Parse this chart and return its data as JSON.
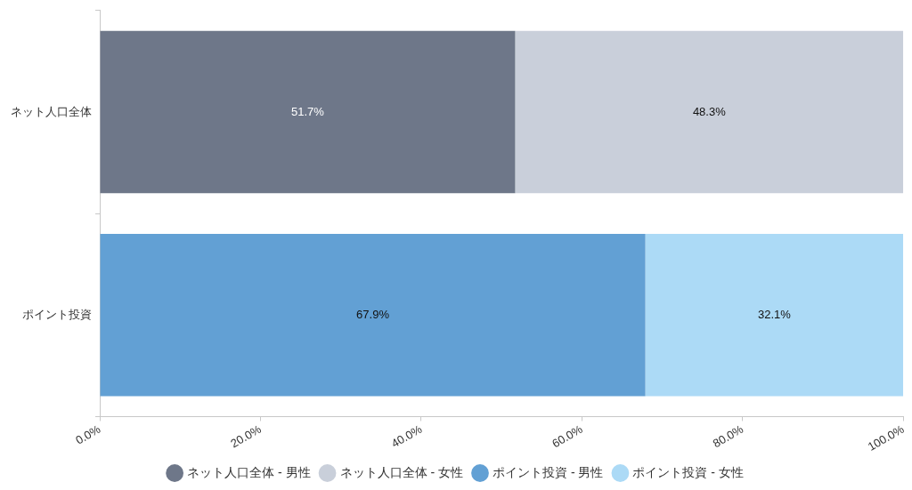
{
  "chart_data": {
    "type": "bar",
    "orientation": "horizontal",
    "stacked": true,
    "categories": [
      "ネット人口全体",
      "ポイント投資"
    ],
    "series": [
      {
        "name": "ネット人口全体 - 男性",
        "color": "#6e7789",
        "values": [
          51.7,
          null
        ],
        "value_labels": [
          "51.7%",
          null
        ]
      },
      {
        "name": "ネット人口全体 - 女性",
        "color": "#c9cfda",
        "values": [
          48.3,
          null
        ],
        "value_labels": [
          "48.3%",
          null
        ]
      },
      {
        "name": "ポイント投資 - 男性",
        "color": "#62a0d4",
        "values": [
          null,
          67.9
        ],
        "value_labels": [
          null,
          "67.9%"
        ]
      },
      {
        "name": "ポイント投資 - 女性",
        "color": "#acdaf6",
        "values": [
          null,
          32.1
        ],
        "value_labels": [
          null,
          "32.1%"
        ]
      }
    ],
    "xlim": [
      0,
      100
    ],
    "xticks": [
      {
        "value": 0,
        "label": "0.0%"
      },
      {
        "value": 20,
        "label": "20.0%"
      },
      {
        "value": 40,
        "label": "40.0%"
      },
      {
        "value": 60,
        "label": "60.0%"
      },
      {
        "value": 80,
        "label": "80.0%"
      },
      {
        "value": 100,
        "label": "100.0%"
      }
    ],
    "grid": false,
    "legend": "bottom"
  }
}
